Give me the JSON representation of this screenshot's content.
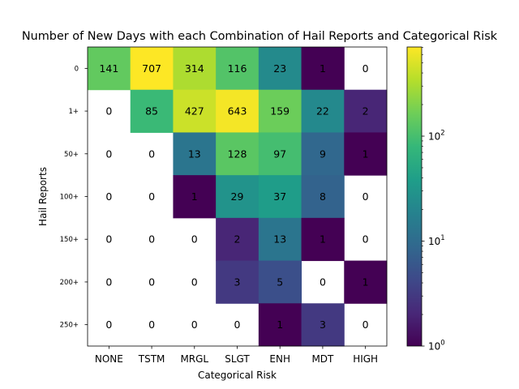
{
  "chart_data": {
    "type": "heatmap",
    "title": "Number of New Days with each Combination of Hail Reports and Categorical Risk",
    "xlabel": "Categorical Risk",
    "ylabel": "Hail Reports",
    "x_categories": [
      "NONE",
      "TSTM",
      "MRGL",
      "SLGT",
      "ENH",
      "MDT",
      "HIGH"
    ],
    "y_categories": [
      "0",
      "1+",
      "50+",
      "100+",
      "150+",
      "200+",
      "250+"
    ],
    "values": [
      [
        141,
        707,
        314,
        116,
        23,
        1,
        0
      ],
      [
        0,
        85,
        427,
        643,
        159,
        22,
        2
      ],
      [
        0,
        0,
        13,
        128,
        97,
        9,
        1
      ],
      [
        0,
        0,
        1,
        29,
        37,
        8,
        0
      ],
      [
        0,
        0,
        0,
        2,
        13,
        1,
        0
      ],
      [
        0,
        0,
        0,
        3,
        5,
        0,
        1
      ],
      [
        0,
        0,
        0,
        0,
        1,
        3,
        0
      ]
    ],
    "zero_cells": "blank (white)",
    "colormap": "viridis",
    "color_scale": "log",
    "color_range": [
      1,
      707
    ],
    "colorbar_ticks": [
      {
        "value": 1,
        "base": "10",
        "exp": "0"
      },
      {
        "value": 10,
        "base": "10",
        "exp": "1"
      },
      {
        "value": 100,
        "base": "10",
        "exp": "2"
      }
    ]
  }
}
